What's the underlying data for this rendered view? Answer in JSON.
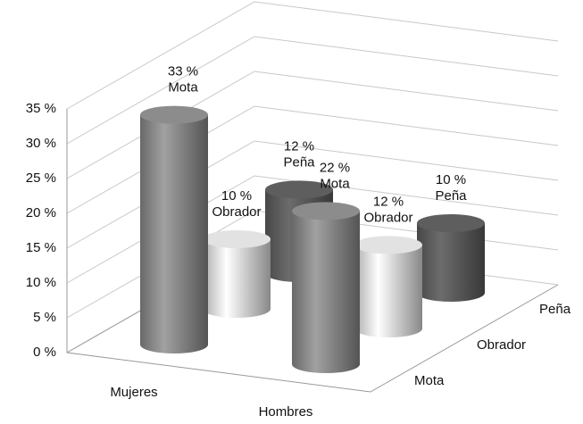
{
  "chart_data": {
    "type": "bar3d",
    "categories": [
      "Mujeres",
      "Hombres"
    ],
    "series": [
      {
        "name": "Mota",
        "color": "#8c8c8c",
        "values": [
          33,
          22
        ],
        "value_labels": [
          "33 %",
          "22 %"
        ]
      },
      {
        "name": "Obrador",
        "color": "#e2e2e2",
        "values": [
          10,
          12
        ],
        "value_labels": [
          "10 %",
          "12 %"
        ]
      },
      {
        "name": "Peña",
        "color": "#5e5e5e",
        "values": [
          12,
          10
        ],
        "value_labels": [
          "12 %",
          "10 %"
        ]
      }
    ],
    "ylim": [
      0,
      35
    ],
    "yticks": [
      {
        "value": 0,
        "label": "0 %"
      },
      {
        "value": 5,
        "label": "5 %"
      },
      {
        "value": 10,
        "label": "10 %"
      },
      {
        "value": 15,
        "label": "15 %"
      },
      {
        "value": 20,
        "label": "20 %"
      },
      {
        "value": 25,
        "label": "25 %"
      },
      {
        "value": 30,
        "label": "30 %"
      },
      {
        "value": 35,
        "label": "35 %"
      }
    ],
    "grid": true
  }
}
